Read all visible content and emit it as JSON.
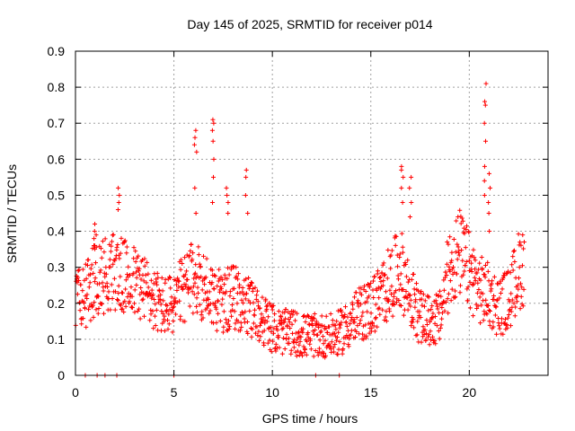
{
  "chart_data": {
    "type": "scatter",
    "title": "Day 145 of 2025, SRMTID for receiver p014",
    "xlabel": "GPS time / hours",
    "ylabel": "SRMTID / TECUs",
    "xlim": [
      0,
      24
    ],
    "ylim": [
      0,
      0.9
    ],
    "xticks": [
      0,
      5,
      10,
      15,
      20
    ],
    "xtick_labels": [
      "0",
      "5",
      "10",
      "15",
      "20"
    ],
    "yticks": [
      0,
      0.1,
      0.2,
      0.3,
      0.4,
      0.5,
      0.6,
      0.7,
      0.8,
      0.9
    ],
    "ytick_labels": [
      "0",
      "0.1",
      "0.2",
      "0.3",
      "0.4",
      "0.5",
      "0.6",
      "0.7",
      "0.8",
      "0.9"
    ],
    "grid": true,
    "marker": "+",
    "color": "#ff0000",
    "series": [
      {
        "name": "SRMTID",
        "trend": [
          [
            0,
            0.2
          ],
          [
            0.5,
            0.22
          ],
          [
            1,
            0.27
          ],
          [
            1.5,
            0.28
          ],
          [
            2,
            0.29
          ],
          [
            2.5,
            0.27
          ],
          [
            3,
            0.26
          ],
          [
            3.5,
            0.24
          ],
          [
            4,
            0.21
          ],
          [
            4.5,
            0.19
          ],
          [
            5,
            0.2
          ],
          [
            5.5,
            0.24
          ],
          [
            6,
            0.27
          ],
          [
            6.5,
            0.25
          ],
          [
            7,
            0.22
          ],
          [
            7.5,
            0.2
          ],
          [
            8,
            0.22
          ],
          [
            8.5,
            0.2
          ],
          [
            9,
            0.18
          ],
          [
            9.5,
            0.16
          ],
          [
            10,
            0.13
          ],
          [
            10.5,
            0.12
          ],
          [
            11,
            0.12
          ],
          [
            11.5,
            0.11
          ],
          [
            12,
            0.11
          ],
          [
            12.5,
            0.11
          ],
          [
            13,
            0.11
          ],
          [
            13.5,
            0.12
          ],
          [
            14,
            0.15
          ],
          [
            14.5,
            0.17
          ],
          [
            15,
            0.19
          ],
          [
            15.5,
            0.22
          ],
          [
            16,
            0.26
          ],
          [
            16.5,
            0.3
          ],
          [
            17,
            0.22
          ],
          [
            17.5,
            0.16
          ],
          [
            18,
            0.15
          ],
          [
            18.5,
            0.16
          ],
          [
            19,
            0.3
          ],
          [
            19.5,
            0.34
          ],
          [
            20,
            0.29
          ],
          [
            20.5,
            0.24
          ],
          [
            21,
            0.22
          ],
          [
            21.5,
            0.19
          ],
          [
            22,
            0.21
          ],
          [
            22.5,
            0.29
          ],
          [
            22.8,
            0.31
          ]
        ],
        "spikes": [
          {
            "x": 1.0,
            "values": [
              0.36,
              0.38,
              0.39,
              0.4,
              0.42
            ]
          },
          {
            "x": 2.2,
            "values": [
              0.46,
              0.48,
              0.5,
              0.52
            ]
          },
          {
            "x": 6.1,
            "values": [
              0.45,
              0.52,
              0.62,
              0.64,
              0.66,
              0.68
            ]
          },
          {
            "x": 7.0,
            "values": [
              0.48,
              0.55,
              0.6,
              0.65,
              0.68,
              0.7,
              0.71
            ]
          },
          {
            "x": 7.7,
            "values": [
              0.45,
              0.48,
              0.5,
              0.52
            ]
          },
          {
            "x": 8.7,
            "values": [
              0.45,
              0.5,
              0.55,
              0.57
            ]
          },
          {
            "x": 16.6,
            "values": [
              0.48,
              0.52,
              0.55,
              0.57,
              0.58
            ]
          },
          {
            "x": 17.0,
            "values": [
              0.44,
              0.48,
              0.52,
              0.55
            ]
          },
          {
            "x": 20.8,
            "values": [
              0.5,
              0.54,
              0.58,
              0.65,
              0.7,
              0.75,
              0.76,
              0.81
            ]
          },
          {
            "x": 21.0,
            "values": [
              0.4,
              0.45,
              0.48,
              0.52,
              0.56
            ]
          }
        ],
        "zeros": [
          0.5,
          1.1,
          1.5,
          2.1,
          5.0,
          12.2,
          13.4
        ]
      }
    ]
  }
}
